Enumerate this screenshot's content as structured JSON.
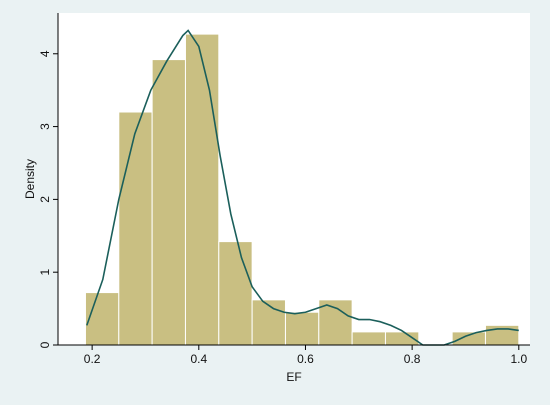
{
  "chart_data": {
    "type": "histogram",
    "xlabel": "EF",
    "ylabel": "Density",
    "bins": [
      0.1875,
      0.25,
      0.3125,
      0.375,
      0.4375,
      0.5,
      0.5625,
      0.625,
      0.6875,
      0.75,
      0.8125,
      0.875,
      0.9375,
      1.0
    ],
    "values": [
      0.72,
      3.2,
      3.92,
      4.27,
      1.42,
      0.62,
      0.45,
      0.62,
      0.18,
      0.18,
      0,
      0.18,
      0.27
    ],
    "color": "#c9bf82",
    "density": {
      "color": "#1b5f5b",
      "x": [
        0.19,
        0.22,
        0.25,
        0.28,
        0.31,
        0.34,
        0.37,
        0.38,
        0.4,
        0.42,
        0.44,
        0.46,
        0.48,
        0.5,
        0.52,
        0.54,
        0.56,
        0.58,
        0.6,
        0.62,
        0.64,
        0.66,
        0.68,
        0.7,
        0.72,
        0.74,
        0.76,
        0.78,
        0.8,
        0.82,
        0.84,
        0.86,
        0.88,
        0.9,
        0.92,
        0.94,
        0.96,
        0.98,
        1.0
      ],
      "values": [
        0.27,
        0.9,
        2.0,
        2.9,
        3.5,
        3.9,
        4.25,
        4.32,
        4.1,
        3.5,
        2.6,
        1.8,
        1.2,
        0.8,
        0.6,
        0.5,
        0.45,
        0.43,
        0.45,
        0.5,
        0.55,
        0.5,
        0.4,
        0.35,
        0.35,
        0.32,
        0.27,
        0.2,
        0.1,
        0.0,
        0.0,
        0.0,
        0.05,
        0.12,
        0.17,
        0.2,
        0.22,
        0.22,
        0.2
      ]
    },
    "xlim": [
      0.136,
      1.021
    ],
    "ylim": [
      0,
      4.56
    ],
    "xticks": [
      0.2,
      0.4,
      0.6,
      0.8,
      {
        "value": 1,
        "label": "1.0"
      }
    ],
    "yticks": [
      0,
      1,
      2,
      3,
      4
    ],
    "grid": false
  }
}
